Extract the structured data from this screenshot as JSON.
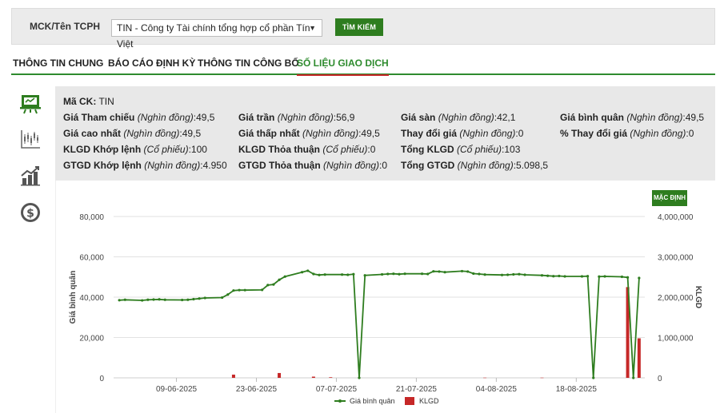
{
  "search": {
    "label": "MCK/Tên TCPH",
    "selected_company": "TIN - Công ty Tài chính tổng hợp cổ phần Tín Việt",
    "button_label": "TÌM KIẾM"
  },
  "tabs": [
    {
      "label": "THÔNG TIN CHUNG",
      "active": false
    },
    {
      "label": "BÁO CÁO ĐỊNH KỲ",
      "active": false
    },
    {
      "label": "THÔNG TIN CÔNG BỐ",
      "active": false
    },
    {
      "label": "SỐ LIỆU GIAO DỊCH",
      "active": true
    }
  ],
  "sidebar_icons": [
    "presentation-board-icon",
    "candlestick-chart-icon",
    "bar-growth-chart-icon",
    "dollar-coin-icon"
  ],
  "colors": {
    "accent_green": "#2e7d1f",
    "tab_underline": "#c62828",
    "price_line": "#2e7d1f",
    "volume_bar": "#c62828"
  },
  "info": {
    "ticker": {
      "label": "Mã CK:",
      "value": "TIN"
    },
    "rows": [
      [
        {
          "label": "Giá Tham chiếu",
          "unit": "(Nghìn đồng)",
          "value": ":49,5"
        },
        {
          "label": "Giá trần",
          "unit": "(Nghìn đồng)",
          "value": ":56,9"
        },
        {
          "label": "Giá sàn",
          "unit": "(Nghìn đồng)",
          "value": ":42,1"
        },
        {
          "label": "Giá bình quân",
          "unit": "(Nghìn đồng)",
          "value": ":49,5"
        }
      ],
      [
        {
          "label": "Giá cao nhất",
          "unit": "(Nghìn đồng)",
          "value": ":49,5"
        },
        {
          "label": "Giá thấp nhất",
          "unit": "(Nghìn đồng)",
          "value": ":49,5"
        },
        {
          "label": "Thay đổi giá",
          "unit": "(Nghìn đồng)",
          "value": ":0"
        },
        {
          "label": "% Thay đổi giá",
          "unit": "(Nghìn đồng)",
          "value": ":0"
        }
      ],
      [
        {
          "label": "KLGD Khớp lệnh",
          "unit": "(Cổ phiếu)",
          "value": ":100"
        },
        {
          "label": "KLGD Thỏa thuận",
          "unit": "(Cổ phiếu)",
          "value": ":0"
        },
        {
          "label": "Tổng KLGD",
          "unit": "(Cổ phiếu)",
          "value": ":103"
        }
      ],
      [
        {
          "label": "GTGD Khớp lệnh",
          "unit": "(Nghìn đồng)",
          "value": ":4.950"
        },
        {
          "label": "GTGD Thỏa thuận",
          "unit": "(Nghìn đồng)",
          "value": ":0"
        },
        {
          "label": "Tổng GTGD",
          "unit": "(Nghìn đồng)",
          "value": ":5.098,5"
        }
      ]
    ]
  },
  "chart_controls": {
    "default_label": "MẶC ĐỊNH"
  },
  "chart_data": {
    "type": "line",
    "ylabel": "Giá bình quân",
    "y2label": "KLGD",
    "ylim": [
      0,
      80000
    ],
    "y2lim": [
      0,
      4000000
    ],
    "y_ticks": [
      "0",
      "20,000",
      "40,000",
      "60,000",
      "80,000"
    ],
    "y2_ticks": [
      "0",
      "1,000,000",
      "2,000,000",
      "3,000,000",
      "4,000,000"
    ],
    "x_range": [
      "2025-05-29",
      "2025-08-30"
    ],
    "x_ticks": [
      {
        "date": "2025-06-09",
        "label": "09-06-2025"
      },
      {
        "date": "2025-06-23",
        "label": "23-06-2025"
      },
      {
        "date": "2025-07-07",
        "label": "07-07-2025"
      },
      {
        "date": "2025-07-21",
        "label": "21-07-2025"
      },
      {
        "date": "2025-08-04",
        "label": "04-08-2025"
      },
      {
        "date": "2025-08-18",
        "label": "18-08-2025"
      }
    ],
    "grid": true,
    "legend_position": "bottom",
    "series": [
      {
        "name": "Giá bình quân",
        "kind": "line",
        "axis": "left",
        "points": [
          [
            "2025-05-30",
            38500
          ],
          [
            "2025-05-31",
            38700
          ],
          [
            "2025-06-03",
            38400
          ],
          [
            "2025-06-04",
            38700
          ],
          [
            "2025-06-05",
            38800
          ],
          [
            "2025-06-06",
            38900
          ],
          [
            "2025-06-07",
            38700
          ],
          [
            "2025-06-10",
            38600
          ],
          [
            "2025-06-11",
            38700
          ],
          [
            "2025-06-12",
            39000
          ],
          [
            "2025-06-13",
            39300
          ],
          [
            "2025-06-14",
            39600
          ],
          [
            "2025-06-17",
            39800
          ],
          [
            "2025-06-18",
            41300
          ],
          [
            "2025-06-19",
            43300
          ],
          [
            "2025-06-20",
            43500
          ],
          [
            "2025-06-21",
            43500
          ],
          [
            "2025-06-24",
            43600
          ],
          [
            "2025-06-25",
            46000
          ],
          [
            "2025-06-26",
            46300
          ],
          [
            "2025-06-27",
            48600
          ],
          [
            "2025-06-28",
            50200
          ],
          [
            "2025-07-01",
            52400
          ],
          [
            "2025-07-02",
            53100
          ],
          [
            "2025-07-03",
            51500
          ],
          [
            "2025-07-04",
            51000
          ],
          [
            "2025-07-05",
            51200
          ],
          [
            "2025-07-08",
            51200
          ],
          [
            "2025-07-09",
            51100
          ],
          [
            "2025-07-10",
            51400
          ],
          [
            "2025-07-11",
            0
          ],
          [
            "2025-07-12",
            50800
          ],
          [
            "2025-07-15",
            51300
          ],
          [
            "2025-07-16",
            51500
          ],
          [
            "2025-07-17",
            51600
          ],
          [
            "2025-07-18",
            51400
          ],
          [
            "2025-07-19",
            51600
          ],
          [
            "2025-07-22",
            51600
          ],
          [
            "2025-07-23",
            51500
          ],
          [
            "2025-07-24",
            52800
          ],
          [
            "2025-07-25",
            52700
          ],
          [
            "2025-07-26",
            52400
          ],
          [
            "2025-07-29",
            52900
          ],
          [
            "2025-07-30",
            52700
          ],
          [
            "2025-07-31",
            51700
          ],
          [
            "2025-08-01",
            51500
          ],
          [
            "2025-08-02",
            51200
          ],
          [
            "2025-08-05",
            51000
          ],
          [
            "2025-08-06",
            51100
          ],
          [
            "2025-08-07",
            51300
          ],
          [
            "2025-08-08",
            51400
          ],
          [
            "2025-08-09",
            51100
          ],
          [
            "2025-08-12",
            50800
          ],
          [
            "2025-08-13",
            50600
          ],
          [
            "2025-08-14",
            50400
          ],
          [
            "2025-08-15",
            50500
          ],
          [
            "2025-08-16",
            50300
          ],
          [
            "2025-08-19",
            50300
          ],
          [
            "2025-08-20",
            50400
          ],
          [
            "2025-08-21",
            0
          ],
          [
            "2025-08-22",
            50200
          ],
          [
            "2025-08-23",
            50300
          ],
          [
            "2025-08-26",
            50100
          ],
          [
            "2025-08-27",
            49800
          ],
          [
            "2025-08-28",
            0
          ],
          [
            "2025-08-29",
            49500
          ]
        ]
      },
      {
        "name": "KLGD",
        "kind": "bar",
        "axis": "right",
        "points": [
          [
            "2025-06-19",
            80000
          ],
          [
            "2025-06-27",
            120000
          ],
          [
            "2025-07-03",
            30000
          ],
          [
            "2025-07-06",
            15000
          ],
          [
            "2025-08-02",
            5000
          ],
          [
            "2025-08-12",
            5000
          ],
          [
            "2025-08-27",
            2250000
          ],
          [
            "2025-08-29",
            980000
          ]
        ]
      }
    ]
  }
}
